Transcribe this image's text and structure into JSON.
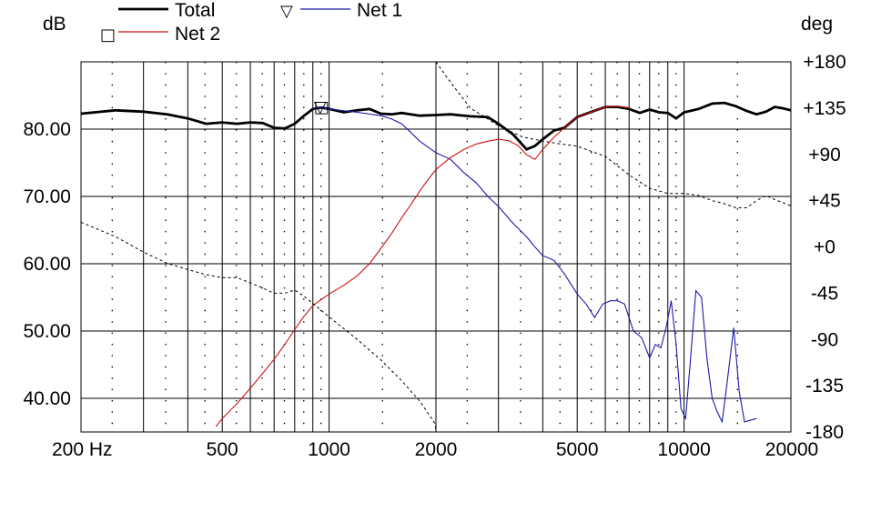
{
  "chart_data": {
    "type": "line",
    "left_axis_unit": "dB",
    "right_axis_unit": "deg",
    "x_scale": "log",
    "xlim": [
      200,
      20000
    ],
    "ylim_left": [
      35,
      90
    ],
    "ylim_right": [
      -180,
      180
    ],
    "grid": true,
    "legend_position": "top-left",
    "x_ticks": [
      {
        "value": 200,
        "label": "200 Hz"
      },
      {
        "value": 500,
        "label": "500"
      },
      {
        "value": 1000,
        "label": "1000"
      },
      {
        "value": 2000,
        "label": "2000"
      },
      {
        "value": 5000,
        "label": "5000"
      },
      {
        "value": 10000,
        "label": "10000"
      },
      {
        "value": 20000,
        "label": "20000"
      }
    ],
    "y_ticks_left": [
      {
        "value": 80,
        "label": "80.00"
      },
      {
        "value": 70,
        "label": "70.00"
      },
      {
        "value": 60,
        "label": "60.00"
      },
      {
        "value": 50,
        "label": "50.00"
      },
      {
        "value": 40,
        "label": "40.00"
      }
    ],
    "y_ticks_right": [
      {
        "value": 180,
        "label": "+180"
      },
      {
        "value": 135,
        "label": "+135"
      },
      {
        "value": 90,
        "label": "+90"
      },
      {
        "value": 45,
        "label": "+45"
      },
      {
        "value": 0,
        "label": "+0"
      },
      {
        "value": -45,
        "label": "-45"
      },
      {
        "value": -90,
        "label": "-90"
      },
      {
        "value": -135,
        "label": "-135"
      },
      {
        "value": -180,
        "label": "-180"
      }
    ],
    "series": [
      {
        "name": "Total",
        "color": "#000000",
        "style": "thick",
        "axis": "left",
        "points": [
          [
            200,
            82.3
          ],
          [
            250,
            82.8
          ],
          [
            300,
            82.6
          ],
          [
            350,
            82.2
          ],
          [
            400,
            81.6
          ],
          [
            450,
            80.8
          ],
          [
            500,
            81.0
          ],
          [
            550,
            80.8
          ],
          [
            600,
            81.0
          ],
          [
            650,
            80.9
          ],
          [
            700,
            80.2
          ],
          [
            750,
            80.1
          ],
          [
            800,
            80.8
          ],
          [
            850,
            82.0
          ],
          [
            900,
            83.0
          ],
          [
            950,
            83.2
          ],
          [
            1000,
            83.0
          ],
          [
            1100,
            82.5
          ],
          [
            1200,
            82.8
          ],
          [
            1300,
            83.0
          ],
          [
            1400,
            82.3
          ],
          [
            1500,
            82.2
          ],
          [
            1600,
            82.4
          ],
          [
            1800,
            82.0
          ],
          [
            2000,
            82.1
          ],
          [
            2200,
            82.2
          ],
          [
            2500,
            81.9
          ],
          [
            2800,
            81.8
          ],
          [
            3000,
            80.8
          ],
          [
            3300,
            79.2
          ],
          [
            3600,
            77.0
          ],
          [
            3800,
            77.5
          ],
          [
            4000,
            78.5
          ],
          [
            4300,
            79.8
          ],
          [
            4600,
            80.2
          ],
          [
            5000,
            81.8
          ],
          [
            5500,
            82.6
          ],
          [
            6000,
            83.3
          ],
          [
            6500,
            83.3
          ],
          [
            7000,
            83.0
          ],
          [
            7500,
            82.4
          ],
          [
            8000,
            82.9
          ],
          [
            8500,
            82.5
          ],
          [
            9000,
            82.4
          ],
          [
            9500,
            81.6
          ],
          [
            10000,
            82.5
          ],
          [
            11000,
            83.0
          ],
          [
            12000,
            83.8
          ],
          [
            13000,
            83.9
          ],
          [
            14000,
            83.4
          ],
          [
            15000,
            82.7
          ],
          [
            16000,
            82.2
          ],
          [
            17000,
            82.6
          ],
          [
            18000,
            83.3
          ],
          [
            19000,
            83.1
          ],
          [
            20000,
            82.8
          ]
        ]
      },
      {
        "name": "Net 1",
        "color": "#1a1aa8",
        "style": "thin",
        "axis": "left",
        "points": [
          [
            900,
            83.1
          ],
          [
            950,
            83.3
          ],
          [
            1000,
            83.0
          ],
          [
            1200,
            82.5
          ],
          [
            1400,
            82.0
          ],
          [
            1500,
            81.5
          ],
          [
            1600,
            80.8
          ],
          [
            1700,
            79.5
          ],
          [
            1800,
            78.2
          ],
          [
            2000,
            76.5
          ],
          [
            2200,
            75.5
          ],
          [
            2400,
            73.5
          ],
          [
            2600,
            72.0
          ],
          [
            2800,
            70.0
          ],
          [
            3000,
            68.5
          ],
          [
            3300,
            66.0
          ],
          [
            3600,
            64.0
          ],
          [
            3800,
            62.5
          ],
          [
            4000,
            61.2
          ],
          [
            4300,
            60.5
          ],
          [
            4600,
            58.5
          ],
          [
            5000,
            55.5
          ],
          [
            5300,
            54.0
          ],
          [
            5600,
            52.0
          ],
          [
            5900,
            54.0
          ],
          [
            6200,
            54.5
          ],
          [
            6500,
            54.5
          ],
          [
            6800,
            54.0
          ],
          [
            7200,
            50.0
          ],
          [
            7600,
            49.0
          ],
          [
            8000,
            46.0
          ],
          [
            8300,
            48.0
          ],
          [
            8600,
            47.5
          ],
          [
            8900,
            50.5
          ],
          [
            9200,
            54.5
          ],
          [
            9500,
            48.0
          ],
          [
            9800,
            38.5
          ],
          [
            10100,
            37.0
          ],
          [
            10400,
            45.0
          ],
          [
            10800,
            56.0
          ],
          [
            11200,
            55.0
          ],
          [
            11600,
            46.0
          ],
          [
            12000,
            40.0
          ],
          [
            12400,
            38.0
          ],
          [
            12800,
            36.5
          ],
          [
            13200,
            42.0
          ],
          [
            13800,
            50.5
          ],
          [
            14300,
            41.0
          ],
          [
            14800,
            36.5
          ],
          [
            16000,
            37.0
          ]
        ]
      },
      {
        "name": "Net 2",
        "color": "#d01010",
        "style": "thin",
        "axis": "left",
        "points": [
          [
            480,
            35.8
          ],
          [
            500,
            37.0
          ],
          [
            550,
            39.2
          ],
          [
            600,
            41.5
          ],
          [
            650,
            43.7
          ],
          [
            700,
            45.8
          ],
          [
            750,
            48.0
          ],
          [
            800,
            50.2
          ],
          [
            850,
            52.2
          ],
          [
            900,
            53.8
          ],
          [
            1000,
            55.5
          ],
          [
            1100,
            56.8
          ],
          [
            1200,
            58.2
          ],
          [
            1300,
            60.0
          ],
          [
            1400,
            62.3
          ],
          [
            1500,
            64.5
          ],
          [
            1600,
            66.8
          ],
          [
            1700,
            68.8
          ],
          [
            1800,
            70.8
          ],
          [
            1900,
            72.5
          ],
          [
            2000,
            74.0
          ],
          [
            2200,
            75.8
          ],
          [
            2400,
            77.0
          ],
          [
            2600,
            77.8
          ],
          [
            2800,
            78.2
          ],
          [
            3000,
            78.5
          ],
          [
            3200,
            78.3
          ],
          [
            3400,
            77.6
          ],
          [
            3600,
            76.2
          ],
          [
            3800,
            75.5
          ],
          [
            4000,
            77.0
          ],
          [
            4300,
            78.8
          ],
          [
            4600,
            80.2
          ],
          [
            5000,
            81.8
          ],
          [
            5500,
            82.6
          ],
          [
            6000,
            83.3
          ],
          [
            6500,
            83.4
          ],
          [
            7000,
            83.2
          ]
        ]
      },
      {
        "name": "",
        "color": "#000000",
        "style": "dashed",
        "axis": "right",
        "points": [
          [
            200,
            24
          ],
          [
            250,
            10
          ],
          [
            300,
            -5
          ],
          [
            350,
            -16
          ],
          [
            400,
            -22
          ],
          [
            450,
            -27
          ],
          [
            500,
            -30
          ],
          [
            550,
            -30
          ],
          [
            600,
            -35
          ],
          [
            650,
            -40
          ],
          [
            700,
            -45
          ],
          [
            750,
            -45
          ],
          [
            800,
            -42
          ],
          [
            850,
            -48
          ],
          [
            900,
            -55
          ],
          [
            1000,
            -68
          ],
          [
            1200,
            -90
          ],
          [
            1400,
            -110
          ],
          [
            1600,
            -130
          ],
          [
            1800,
            -150
          ],
          [
            1990,
            -172
          ],
          [
            2000,
            180
          ],
          [
            2200,
            160
          ],
          [
            2500,
            135
          ],
          [
            3000,
            118
          ],
          [
            3500,
            107
          ],
          [
            4000,
            103
          ],
          [
            4500,
            100
          ],
          [
            5000,
            98
          ],
          [
            6000,
            88
          ],
          [
            7000,
            70
          ],
          [
            8000,
            57
          ],
          [
            9000,
            52
          ],
          [
            10000,
            52
          ],
          [
            11000,
            50
          ],
          [
            12000,
            45
          ],
          [
            13000,
            42
          ],
          [
            14000,
            38
          ],
          [
            15000,
            38
          ],
          [
            16000,
            45
          ],
          [
            17000,
            50
          ],
          [
            18000,
            46
          ],
          [
            19000,
            43
          ],
          [
            20000,
            40
          ]
        ]
      }
    ],
    "markers": [
      {
        "symbol": "▽",
        "series": "Net 1",
        "x": 950,
        "y": 83.3
      },
      {
        "symbol": "□",
        "series": "Net 2",
        "x": 950,
        "y": 83.3
      }
    ],
    "legend": [
      {
        "label": "Total",
        "color": "#000000",
        "marker": ""
      },
      {
        "label": "Net 1",
        "color": "#1a1aa8",
        "marker": "▽"
      },
      {
        "label": "Net 2",
        "color": "#d01010",
        "marker": "□"
      }
    ]
  }
}
